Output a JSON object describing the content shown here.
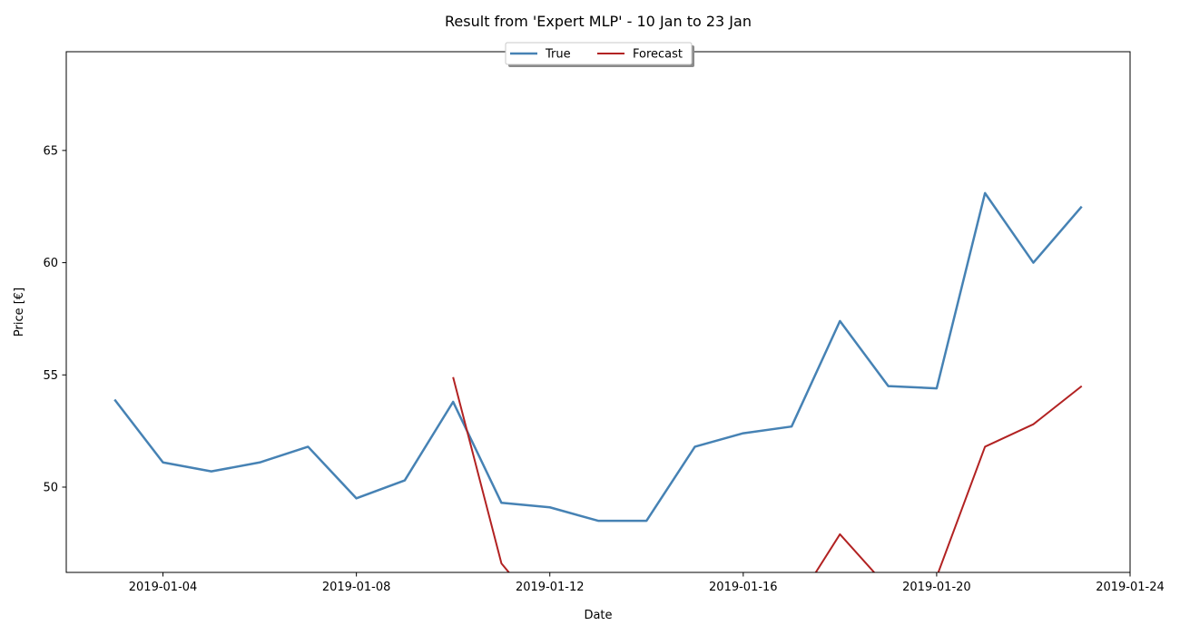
{
  "chart_data": {
    "type": "line",
    "title": "Result from 'Expert MLP' - 10 Jan to 23 Jan",
    "xlabel": "Date",
    "ylabel": "Price [€]",
    "x_axis_type": "date",
    "xlim": [
      "2019-01-02",
      "2019-01-24"
    ],
    "ylim": [
      46.2,
      69.4
    ],
    "x_ticks": [
      "2019-01-04",
      "2019-01-08",
      "2019-01-12",
      "2019-01-16",
      "2019-01-20",
      "2019-01-24"
    ],
    "y_ticks": [
      50,
      55,
      60,
      65
    ],
    "grid": false,
    "legend": {
      "position": "top-center",
      "columns": 2
    },
    "series": [
      {
        "name": "True",
        "color": "#4682b4",
        "points": [
          {
            "x": "2019-01-03",
            "y": 53.9
          },
          {
            "x": "2019-01-04",
            "y": 51.1
          },
          {
            "x": "2019-01-05",
            "y": 50.7
          },
          {
            "x": "2019-01-06",
            "y": 51.1
          },
          {
            "x": "2019-01-07",
            "y": 51.8
          },
          {
            "x": "2019-01-08",
            "y": 49.5
          },
          {
            "x": "2019-01-09",
            "y": 50.3
          },
          {
            "x": "2019-01-10",
            "y": 53.8
          },
          {
            "x": "2019-01-11",
            "y": 49.3
          },
          {
            "x": "2019-01-12",
            "y": 49.1
          },
          {
            "x": "2019-01-13",
            "y": 48.5
          },
          {
            "x": "2019-01-14",
            "y": 48.5
          },
          {
            "x": "2019-01-15",
            "y": 51.8
          },
          {
            "x": "2019-01-16",
            "y": 52.4
          },
          {
            "x": "2019-01-17",
            "y": 52.7
          },
          {
            "x": "2019-01-18",
            "y": 57.4
          },
          {
            "x": "2019-01-19",
            "y": 54.5
          },
          {
            "x": "2019-01-20",
            "y": 54.4
          },
          {
            "x": "2019-01-21",
            "y": 63.1
          },
          {
            "x": "2019-01-22",
            "y": 60.0
          },
          {
            "x": "2019-01-23",
            "y": 62.5
          }
        ]
      },
      {
        "name": "Forecast",
        "color": "#b22222",
        "points": [
          {
            "x": "2019-01-10",
            "y": 54.9
          },
          {
            "x": "2019-01-11",
            "y": 46.6
          },
          {
            "x": "2019-01-12",
            "y": 44.0
          },
          {
            "x": "2019-01-17",
            "y": 44.5
          },
          {
            "x": "2019-01-18",
            "y": 47.9
          },
          {
            "x": "2019-01-19",
            "y": 45.5
          },
          {
            "x": "2019-01-20",
            "y": 46.0
          },
          {
            "x": "2019-01-21",
            "y": 51.8
          },
          {
            "x": "2019-01-22",
            "y": 52.8
          },
          {
            "x": "2019-01-23",
            "y": 54.5
          }
        ]
      }
    ]
  }
}
